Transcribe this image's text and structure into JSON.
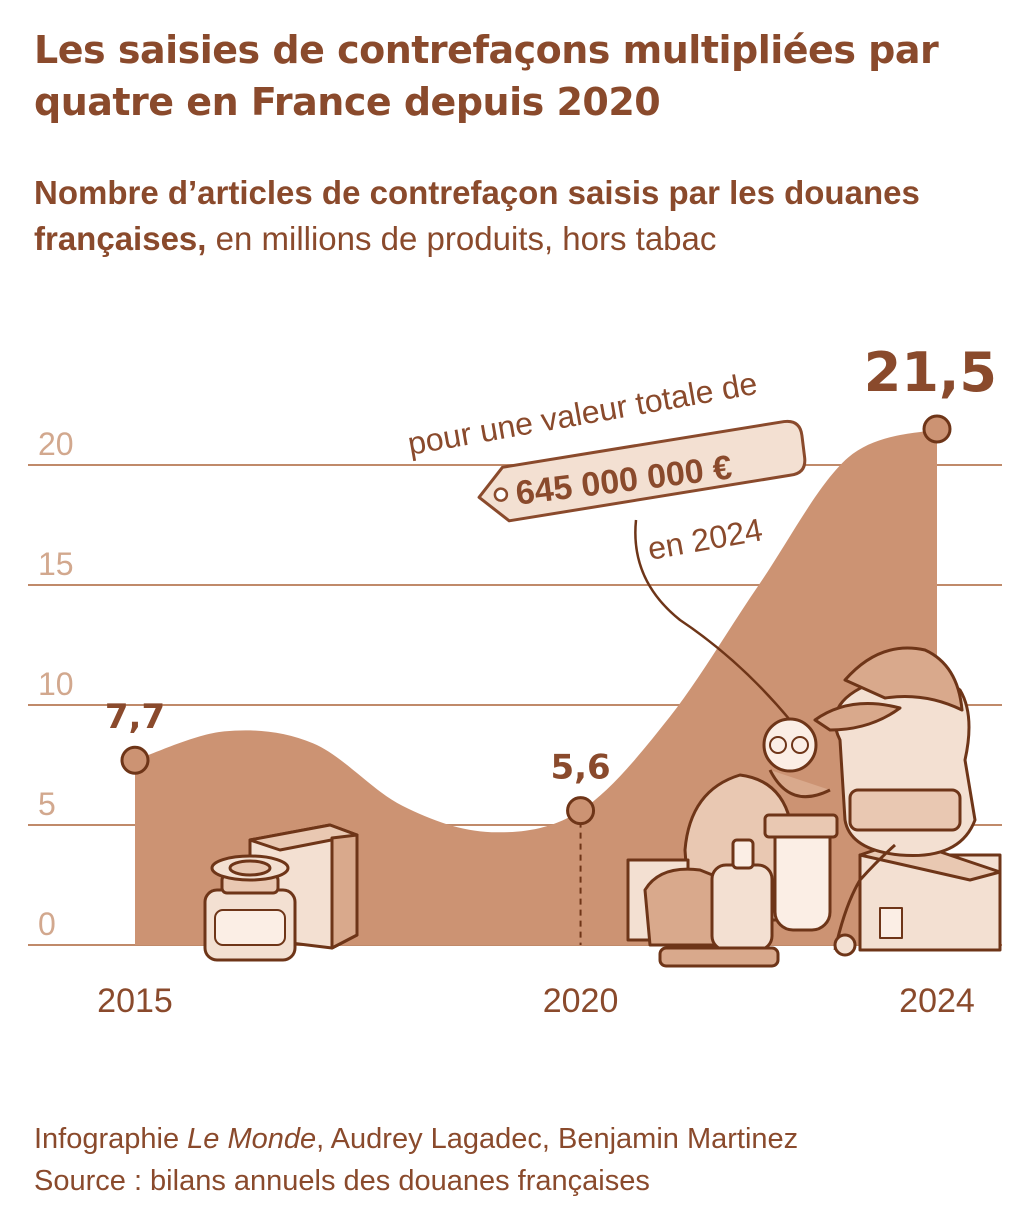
{
  "title": "Les saisies de contrefaçons multipliées par quatre en France depuis 2020",
  "subtitle": {
    "bold": "Nombre d’articles de contrefaçon saisis par les douanes françaises,",
    "rest": " en millions de produits, hors tabac"
  },
  "annotation": {
    "line1": "pour une valeur totale de",
    "value": "645 000 000 €",
    "line3": "en 2024"
  },
  "footer": {
    "credit_prefix": "Infographie ",
    "credit_pub": "Le Monde",
    "credit_suffix": ", Audrey Lagadec, Benjamin Martinez",
    "source": "Source : bilans annuels des douanes françaises"
  },
  "colors": {
    "area": "#cc9373",
    "grid": "#c08a6a",
    "text": "#8a4a2c",
    "axis_text": "#d2a88e",
    "illustration_fill": "#f3e0d2"
  },
  "chart_data": {
    "type": "area",
    "x": [
      2015,
      2016,
      2017,
      2018,
      2019,
      2020,
      2021,
      2022,
      2023,
      2024
    ],
    "values": [
      7.7,
      8.9,
      8.4,
      5.8,
      4.7,
      5.6,
      9.5,
      15.0,
      20.3,
      21.5
    ],
    "labeled_points": [
      {
        "x": 2015,
        "y": 7.7,
        "label": "7,7"
      },
      {
        "x": 2020,
        "y": 5.6,
        "label": "5,6"
      },
      {
        "x": 2024,
        "y": 21.5,
        "label": "21,5"
      }
    ],
    "x_ticks": [
      "2015",
      "2020",
      "2024"
    ],
    "y_ticks": [
      {
        "value": 0,
        "label": "0"
      },
      {
        "value": 5,
        "label": "5"
      },
      {
        "value": 10,
        "label": "10"
      },
      {
        "value": 15,
        "label": "15"
      },
      {
        "value": 20,
        "label": "20"
      }
    ],
    "ylim": [
      0,
      22
    ],
    "xlim": [
      2015,
      2024
    ],
    "grid": true,
    "legend": "none"
  }
}
